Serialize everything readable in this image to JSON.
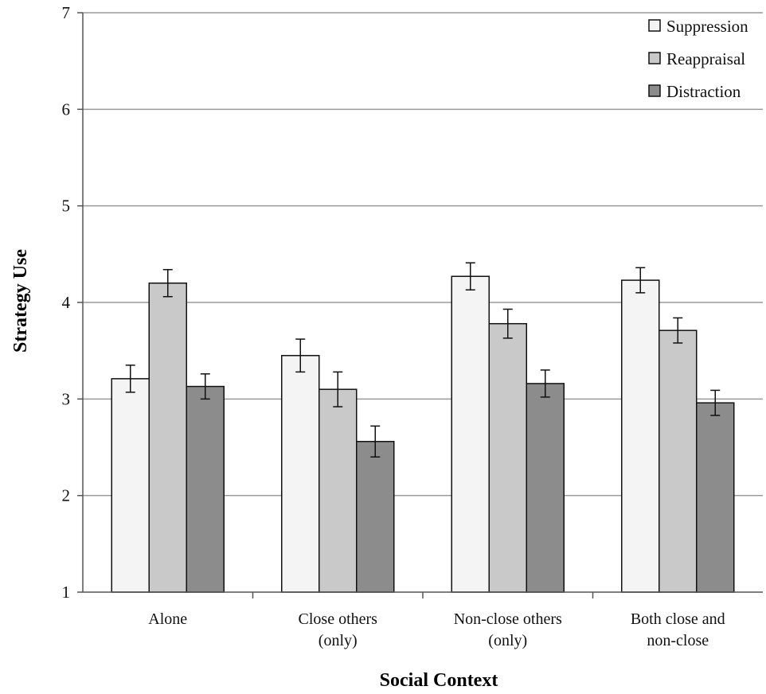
{
  "chart_data": {
    "type": "bar",
    "categories": [
      [
        "Alone"
      ],
      [
        "Close others",
        "(only)"
      ],
      [
        "Non-close others",
        "(only)"
      ],
      [
        "Both close and",
        "non-close"
      ]
    ],
    "series": [
      {
        "name": "Suppression",
        "color": "#f4f4f4",
        "values": [
          3.21,
          3.45,
          4.27,
          4.23
        ],
        "errors": [
          0.14,
          0.17,
          0.14,
          0.13
        ]
      },
      {
        "name": "Reappraisal",
        "color": "#c9c9c9",
        "values": [
          4.2,
          3.1,
          3.78,
          3.71
        ],
        "errors": [
          0.14,
          0.18,
          0.15,
          0.13
        ]
      },
      {
        "name": "Distraction",
        "color": "#8c8c8c",
        "values": [
          3.13,
          2.56,
          3.16,
          2.96
        ],
        "errors": [
          0.13,
          0.16,
          0.14,
          0.13
        ]
      }
    ],
    "title": "",
    "xlabel": "Social Context",
    "ylabel": "Strategy Use",
    "ylim": [
      1,
      7
    ],
    "yticks": [
      "1",
      "2",
      "3",
      "4",
      "5",
      "6",
      "7"
    ],
    "grid": true,
    "legend": "top-right",
    "error_bars": true
  }
}
